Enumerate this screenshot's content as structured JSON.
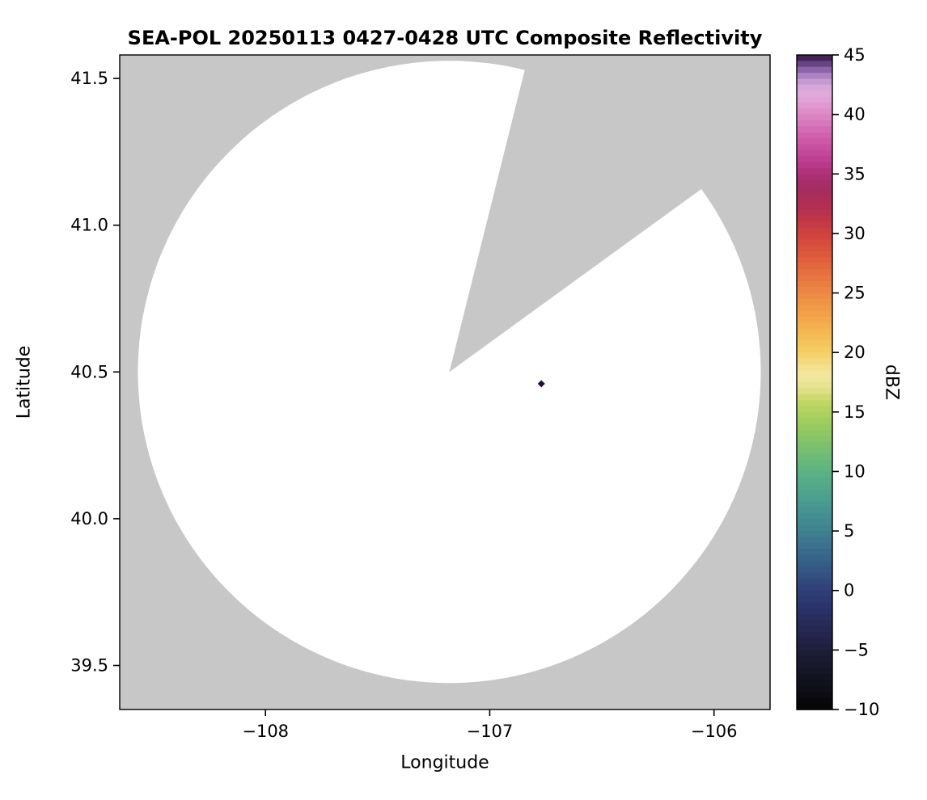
{
  "chart_data": {
    "type": "heatmap",
    "subtype": "radar_ppi_composite_reflectivity_map",
    "title": "SEA-POL 20250113 0427-0428 UTC Composite Reflectivity",
    "xlabel": "Longitude",
    "ylabel": "Latitude",
    "xlim": [
      -108.65,
      -105.75
    ],
    "ylim": [
      39.35,
      41.58
    ],
    "grid": false,
    "plot_background_color": "#c7c7c7",
    "xticks": [
      {
        "value": -108,
        "label": "−108"
      },
      {
        "value": -107,
        "label": "−107"
      },
      {
        "value": -106,
        "label": "−106"
      }
    ],
    "yticks": [
      {
        "value": 39.5,
        "label": "39.5"
      },
      {
        "value": 40.0,
        "label": "40.0"
      },
      {
        "value": 40.5,
        "label": "40.5"
      },
      {
        "value": 41.0,
        "label": "41.0"
      },
      {
        "value": 41.5,
        "label": "41.5"
      }
    ],
    "coverage": {
      "description": "white radar coverage disc (no-echo region) with a blocked wedge sector cut out toward the north-northeast",
      "center_lon": -107.18,
      "center_lat": 40.5,
      "radius_deg_lat": 1.06,
      "blocked_sector_azimuth_start_deg": 14,
      "blocked_sector_azimuth_end_deg": 54,
      "fill_color": "#ffffff"
    },
    "echoes": [
      {
        "lon": -106.77,
        "lat": 40.46,
        "approx_dbz": 45,
        "color": "#221133"
      }
    ],
    "colorbar": {
      "label": "dBZ",
      "min": -10,
      "max": 45,
      "ticks": [
        {
          "value": -10,
          "label": "−10"
        },
        {
          "value": -5,
          "label": "−5"
        },
        {
          "value": 0,
          "label": "0"
        },
        {
          "value": 5,
          "label": "5"
        },
        {
          "value": 10,
          "label": "10"
        },
        {
          "value": 15,
          "label": "15"
        },
        {
          "value": 20,
          "label": "20"
        },
        {
          "value": 25,
          "label": "25"
        },
        {
          "value": 30,
          "label": "30"
        },
        {
          "value": 35,
          "label": "35"
        },
        {
          "value": 40,
          "label": "40"
        },
        {
          "value": 45,
          "label": "45"
        }
      ],
      "stops": [
        [
          -10,
          "#050505"
        ],
        [
          -8,
          "#101019"
        ],
        [
          -6,
          "#191a2e"
        ],
        [
          -4,
          "#222347"
        ],
        [
          -2,
          "#2a2f63"
        ],
        [
          0,
          "#303f78"
        ],
        [
          2,
          "#355a86"
        ],
        [
          4,
          "#3c748f"
        ],
        [
          6,
          "#438c92"
        ],
        [
          8,
          "#4da18e"
        ],
        [
          10,
          "#5cb282"
        ],
        [
          12,
          "#7ac06e"
        ],
        [
          14,
          "#9ccb5d"
        ],
        [
          16,
          "#c4d766"
        ],
        [
          17,
          "#e5e28b"
        ],
        [
          18,
          "#f2e7a4"
        ],
        [
          19,
          "#f5dd85"
        ],
        [
          20,
          "#f5cf63"
        ],
        [
          22,
          "#f4b350"
        ],
        [
          24,
          "#f09647"
        ],
        [
          26,
          "#e97a40"
        ],
        [
          28,
          "#df5c3c"
        ],
        [
          30,
          "#cf423e"
        ],
        [
          32,
          "#b52f50"
        ],
        [
          34,
          "#a52c63"
        ],
        [
          35,
          "#ad3078"
        ],
        [
          36,
          "#bb3c90"
        ],
        [
          38,
          "#cf5cab"
        ],
        [
          40,
          "#dd87c5"
        ],
        [
          41,
          "#e19fd4"
        ],
        [
          42,
          "#dfaede"
        ],
        [
          43,
          "#bd93cd"
        ],
        [
          44,
          "#7d549b"
        ],
        [
          45,
          "#2e1440"
        ]
      ]
    }
  }
}
